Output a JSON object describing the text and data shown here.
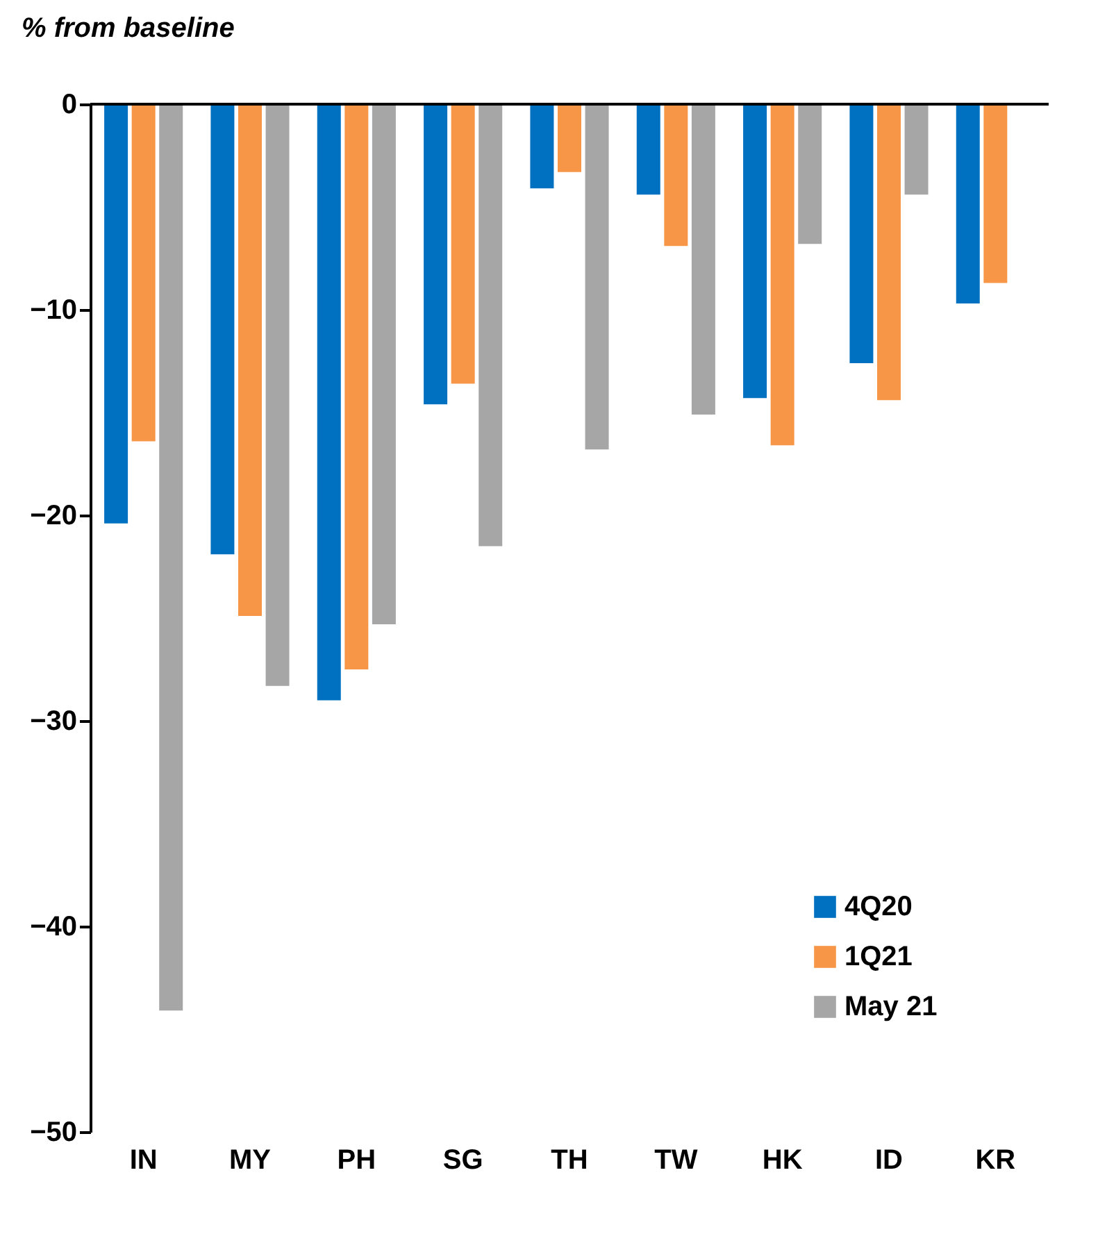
{
  "chart_data": {
    "type": "bar",
    "ylabel": "% from baseline",
    "categories": [
      "IN",
      "MY",
      "PH",
      "SG",
      "TH",
      "TW",
      "HK",
      "ID",
      "KR"
    ],
    "series": [
      {
        "name": "4Q20",
        "color": "#0070c0",
        "values": [
          -20.4,
          -21.9,
          -29.0,
          -14.6,
          -4.1,
          -4.4,
          -14.3,
          -12.6,
          -9.7
        ]
      },
      {
        "name": "1Q21",
        "color": "#f79646",
        "values": [
          -16.4,
          -24.9,
          -27.5,
          -13.6,
          -3.3,
          -6.9,
          -16.6,
          -14.4,
          -8.7
        ]
      },
      {
        "name": "May 21",
        "color": "#a6a6a6",
        "values": [
          -44.1,
          -28.3,
          -25.3,
          -21.5,
          -16.8,
          -15.1,
          -6.8,
          -4.4,
          null
        ]
      }
    ],
    "ylim": [
      -50,
      0
    ],
    "yticks": [
      0,
      -10,
      -20,
      -30,
      -40,
      -50
    ],
    "grid": false,
    "legend": "bottom right"
  }
}
